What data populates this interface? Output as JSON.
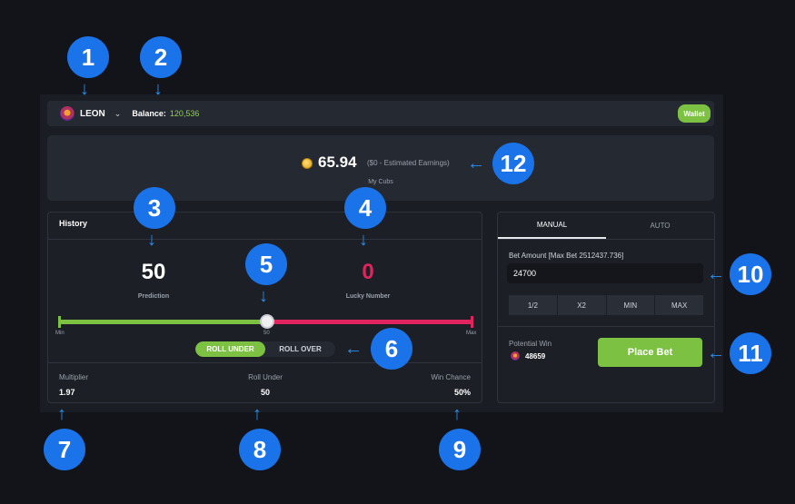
{
  "topbar": {
    "username": "LEON",
    "balance_label": "Balance:",
    "balance_value": "120,536",
    "wallet_label": "Wallet"
  },
  "earnings": {
    "amount": "65.94",
    "estimate": "($0 - Estimated Earnings)",
    "caption": "My Cubs"
  },
  "game": {
    "history_label": "History",
    "prediction_value": "50",
    "prediction_label": "Prediction",
    "lucky_value": "0",
    "lucky_label": "Lucky Number",
    "slider_min": "Min",
    "slider_mid": "50",
    "slider_max": "Max",
    "roll_under_label": "ROLL UNDER",
    "roll_over_label": "ROLL OVER",
    "multiplier_label": "Multiplier",
    "multiplier_value": "1.97",
    "roll_under_stat_label": "Roll Under",
    "roll_under_stat_value": "50",
    "win_chance_label": "Win Chance",
    "win_chance_value": "50%"
  },
  "bet": {
    "tab_manual": "MANUAL",
    "tab_auto": "AUTO",
    "amount_label": "Bet Amount [Max Bet 2512437.736]",
    "amount_value": "24700",
    "quick": [
      "1/2",
      "X2",
      "MIN",
      "MAX"
    ],
    "potential_label": "Potential Win",
    "potential_value": "48659",
    "place_label": "Place Bet"
  },
  "badges": [
    "1",
    "2",
    "3",
    "4",
    "5",
    "6",
    "7",
    "8",
    "9",
    "10",
    "11",
    "12"
  ],
  "colors": {
    "accent_green": "#7cc142",
    "accent_red": "#e0245e",
    "badge_blue": "#1a73e8"
  }
}
